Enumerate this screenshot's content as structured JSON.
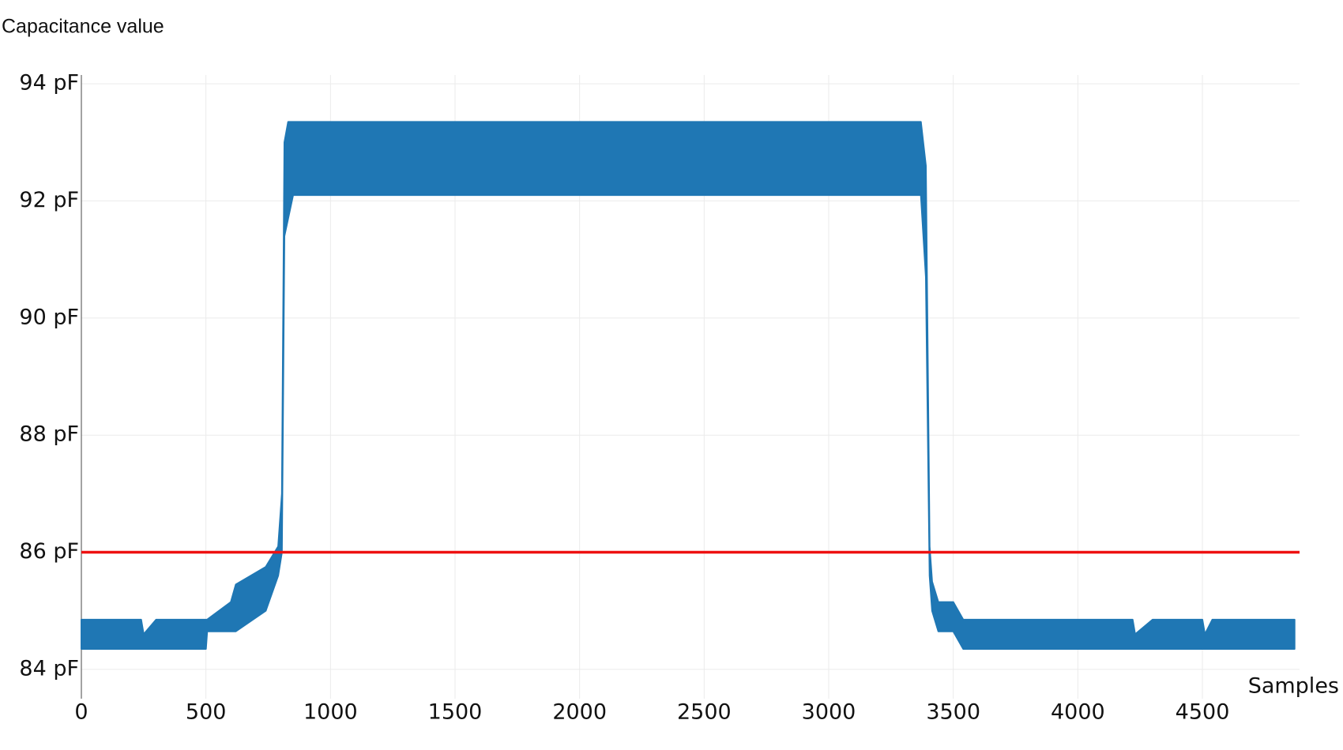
{
  "chart_data": {
    "type": "band",
    "title": "Capacitance value",
    "x_label": "Samples",
    "x": [
      0,
      240,
      250,
      300,
      500,
      505,
      600,
      620,
      740,
      790,
      805,
      815,
      830,
      850,
      900,
      3370,
      3390,
      3405,
      3415,
      3440,
      3500,
      3540,
      4220,
      4230,
      4300,
      4500,
      4510,
      4540,
      4870
    ],
    "series": [
      {
        "color": "#1f77b4",
        "values": [
          84.85,
          84.85,
          84.6,
          84.85,
          84.85,
          84.85,
          85.15,
          85.45,
          85.75,
          86.1,
          87.0,
          93.0,
          93.35,
          93.35,
          93.35,
          93.35,
          92.6,
          86.1,
          85.5,
          85.15,
          85.15,
          84.85,
          84.85,
          84.6,
          84.85,
          84.85,
          84.6,
          84.85,
          84.85
        ]
      },
      {
        "color": "#1f77b4",
        "values": [
          84.35,
          84.35,
          84.35,
          84.35,
          84.35,
          84.65,
          84.65,
          84.65,
          85.0,
          85.6,
          86.0,
          91.4,
          91.7,
          92.1,
          92.1,
          92.1,
          90.7,
          85.6,
          85.0,
          84.65,
          84.65,
          84.35,
          84.35,
          84.35,
          84.35,
          84.35,
          84.35,
          84.35,
          84.35
        ]
      }
    ],
    "threshold": {
      "value": 86,
      "color": "#ee1111"
    },
    "xlim": [
      0,
      4890
    ],
    "ylim": [
      83.5,
      94.15
    ],
    "xticks": [
      0,
      500,
      1000,
      1500,
      2000,
      2500,
      3000,
      3500,
      4000,
      4500
    ],
    "yticks": [
      {
        "value": 84,
        "label": "84 pF"
      },
      {
        "value": 86,
        "label": "86 pF"
      },
      {
        "value": 88,
        "label": "88 pF"
      },
      {
        "value": 90,
        "label": "90 pF"
      },
      {
        "value": 92,
        "label": "92 pF"
      },
      {
        "value": 94,
        "label": "94 pF"
      }
    ],
    "grid": true
  }
}
